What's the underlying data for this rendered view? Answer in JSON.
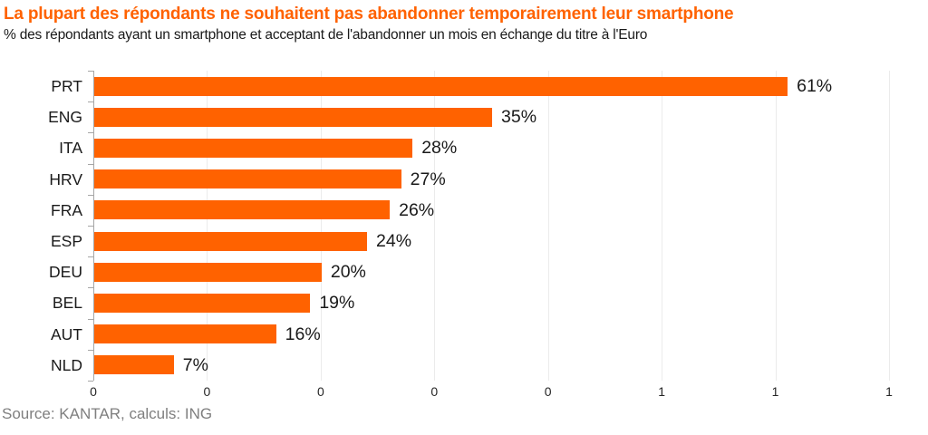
{
  "header": {
    "title": "La plupart des répondants ne souhaitent pas abandonner temporairement leur smartphone",
    "subtitle": "% des répondants ayant un smartphone et acceptant de l'abandonner un mois en échange du titre à l'Euro"
  },
  "footer": {
    "source": "Source: KANTAR, calculs: ING"
  },
  "chart_data": {
    "type": "bar",
    "orientation": "horizontal",
    "title": "La plupart des répondants ne souhaitent pas abandonner temporairement leur smartphone",
    "subtitle": "% des répondants ayant un smartphone et acceptant de l'abandonner un mois en échange du titre à l'Euro",
    "source": "Source: KANTAR, calculs: ING",
    "categories": [
      "PRT",
      "ENG",
      "ITA",
      "HRV",
      "FRA",
      "ESP",
      "DEU",
      "BEL",
      "AUT",
      "NLD"
    ],
    "values_percent": [
      61,
      35,
      28,
      27,
      26,
      24,
      20,
      19,
      16,
      7
    ],
    "value_labels": [
      "61%",
      "35%",
      "28%",
      "27%",
      "26%",
      "24%",
      "20%",
      "19%",
      "16%",
      "7%"
    ],
    "xlim": [
      0,
      0.7
    ],
    "x_tick_values": [
      0,
      0.1,
      0.2,
      0.3,
      0.4,
      0.5,
      0.6,
      0.7
    ],
    "x_tick_labels": [
      "0",
      "0",
      "0",
      "0",
      "0",
      "1",
      "1",
      "1"
    ],
    "grid": "vertical",
    "legend": "none",
    "colors": {
      "bar": "#FF6200",
      "title": "#FF6200",
      "grid": "#EBEBEB",
      "axis": "#A6A6A6",
      "text": "#1A1A1A",
      "source": "#7F7F7F"
    }
  }
}
